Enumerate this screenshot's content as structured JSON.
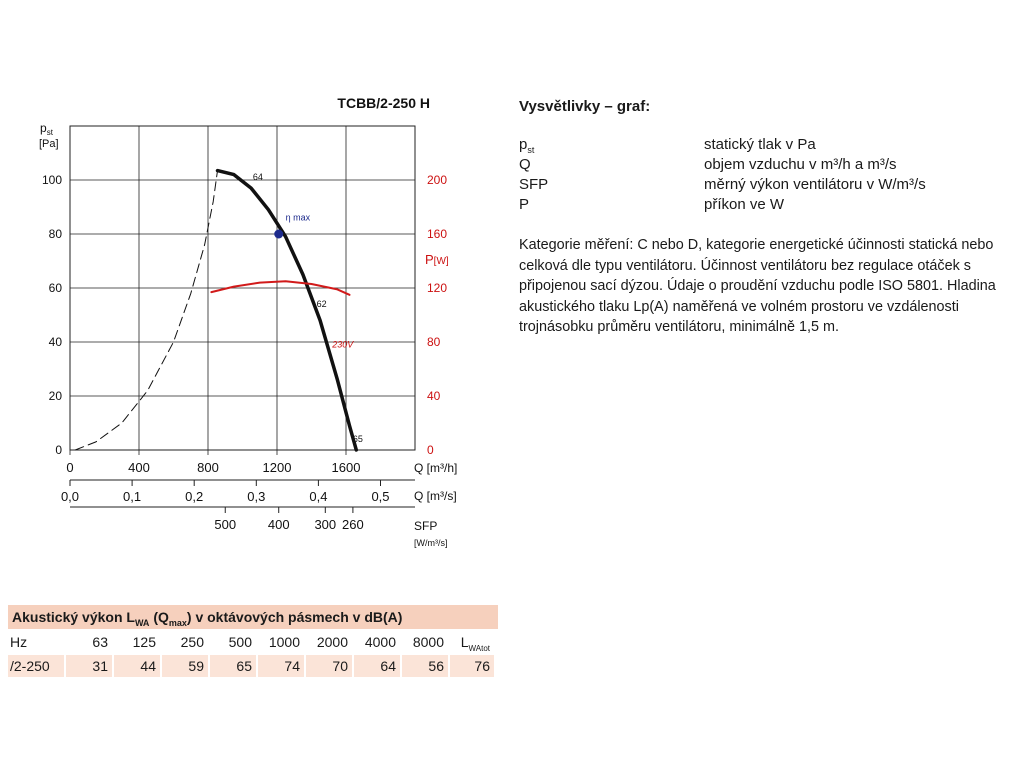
{
  "chart_data": {
    "type": "line",
    "title": "TCBB/2-250 H",
    "y_label": "p",
    "y_label_sub": "st",
    "y_unit": "[Pa]",
    "y_ticks": [
      "0",
      "20",
      "40",
      "60",
      "80",
      "100"
    ],
    "ylim": [
      0,
      120
    ],
    "p_label": "P",
    "p_unit": "[W]",
    "p_ticks": [
      "0",
      "40",
      "80",
      "120",
      "160",
      "200"
    ],
    "plim": [
      0,
      240
    ],
    "x_ticks_m3h": [
      "0",
      "400",
      "800",
      "1200",
      "1600"
    ],
    "x_label_m3h": "Q [m³/h]",
    "xlim_m3h": [
      0,
      2000
    ],
    "x_ticks_m3s": [
      "0,0",
      "0,1",
      "0,2",
      "0,3",
      "0,4",
      "0,5"
    ],
    "x_label_m3s": "Q [m³/s]",
    "sfp_ticks": [
      "500",
      "400",
      "300",
      "260"
    ],
    "sfp_label": "SFP",
    "sfp_unit": "[W/m³/s]",
    "series": [
      {
        "name": "p_st",
        "style": "solid",
        "color": "#111111",
        "points": [
          [
            855,
            103.5
          ],
          [
            950,
            102
          ],
          [
            1050,
            97
          ],
          [
            1150,
            89
          ],
          [
            1250,
            79
          ],
          [
            1350,
            65
          ],
          [
            1450,
            48
          ],
          [
            1550,
            26
          ],
          [
            1620,
            9
          ],
          [
            1660,
            0
          ]
        ]
      },
      {
        "name": "unstable",
        "style": "dashed",
        "color": "#111111",
        "points": [
          [
            30,
            0
          ],
          [
            150,
            3
          ],
          [
            300,
            10
          ],
          [
            450,
            22
          ],
          [
            600,
            40
          ],
          [
            700,
            58
          ],
          [
            780,
            76
          ],
          [
            830,
            92
          ],
          [
            855,
            103.5
          ]
        ]
      },
      {
        "name": "230V",
        "style": "solid",
        "color": "#d11a1a",
        "axis": "P",
        "points": [
          [
            820,
            117
          ],
          [
            950,
            121
          ],
          [
            1100,
            124
          ],
          [
            1250,
            125
          ],
          [
            1400,
            123
          ],
          [
            1550,
            119
          ],
          [
            1620,
            115
          ]
        ]
      }
    ],
    "annotations": [
      {
        "text": "64",
        "x": 1060,
        "y": 100
      },
      {
        "text": "η max",
        "x": 1250,
        "y": 85
      },
      {
        "text": "62",
        "x": 1430,
        "y": 53
      },
      {
        "text": "230V",
        "x": 1520,
        "y": 38
      },
      {
        "text": "65",
        "x": 1640,
        "y": 3
      }
    ],
    "eta_max_point": [
      1210,
      80
    ],
    "grid": true
  },
  "legend": {
    "title": "Vysvětlivky – graf:",
    "items": [
      {
        "symbol": "p",
        "sub": "st",
        "desc": "statický tlak v Pa"
      },
      {
        "symbol": "Q",
        "sub": "",
        "desc": "objem vzduchu v m³/h a m³/s"
      },
      {
        "symbol": "SFP",
        "sub": "",
        "desc": "měrný výkon ventilátoru v W/m³/s"
      },
      {
        "symbol": "P",
        "sub": "",
        "desc": "příkon ve W"
      }
    ],
    "note": "Kategorie měření: C nebo D, kategorie energetické účinnosti statická nebo celková dle typu ventilátoru. Účinnost ventilátoru bez regulace otáček s připojenou sací dýzou. Údaje o proudění vzduchu podle ISO 5801. Hladina akustického tlaku Lp(A) naměřená ve volném prostoru ve vzdálenosti trojnásobku průměru ventilátoru, minimálně 1,5 m."
  },
  "acoustic": {
    "title_a": "Akustický výkon L",
    "title_sub": "WA",
    "title_b": " (Q",
    "title_sub2": "max",
    "title_c": ") v oktávových pásmech v dB(A)",
    "header_first": "Hz",
    "bands": [
      "63",
      "125",
      "250",
      "500",
      "1000",
      "2000",
      "4000",
      "8000"
    ],
    "total_label": "L",
    "total_sub": "WAtot",
    "row_label": "/2-250",
    "row_values": [
      "31",
      "44",
      "59",
      "65",
      "74",
      "70",
      "64",
      "56"
    ],
    "row_total": "76"
  }
}
